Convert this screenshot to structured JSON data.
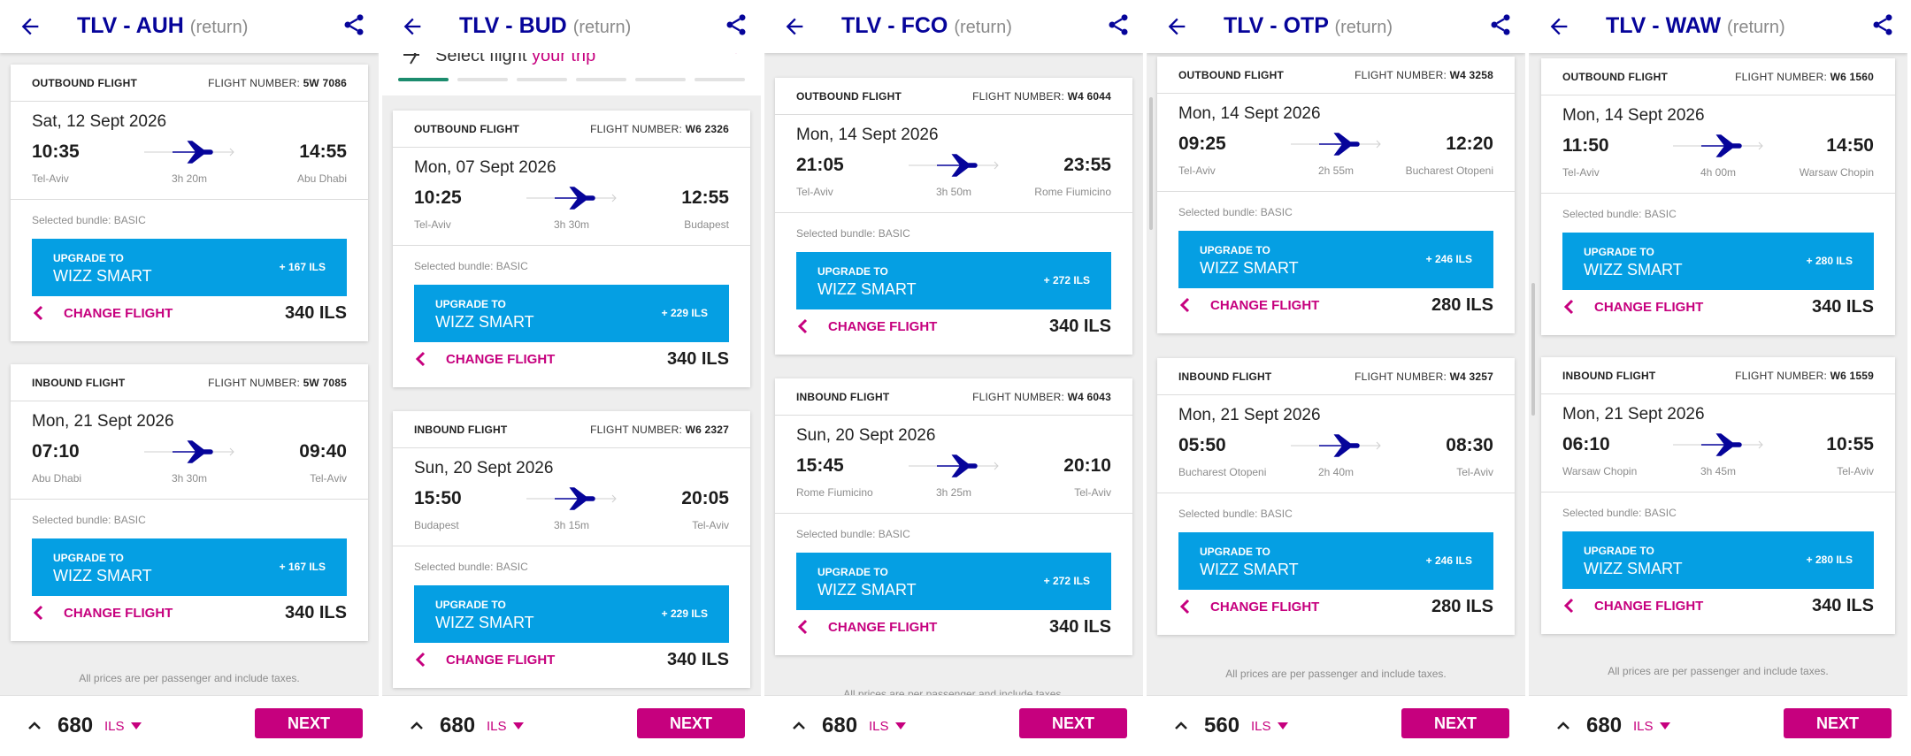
{
  "colors": {
    "brand": "#06049a",
    "accent": "#c6007e",
    "upgrade": "#059fe3"
  },
  "panels": [
    {
      "route": "TLV - AUH",
      "ret": "(return)",
      "outbound": {
        "dir": "OUTBOUND FLIGHT",
        "fn_label": "FLIGHT NUMBER:",
        "fn": "5W 7086",
        "date": "Sat, 12 Sept 2026",
        "dep": "10:35",
        "arr": "14:55",
        "from": "Tel-Aviv",
        "to": "Abu Dhabi",
        "dur": "3h 20m",
        "bundle": "Selected bundle: BASIC",
        "up1": "UPGRADE TO",
        "up2": "WIZZ SMART",
        "up_price": "+ 167 ILS",
        "change": "CHANGE FLIGHT",
        "price": "340 ILS"
      },
      "inbound": {
        "dir": "INBOUND FLIGHT",
        "fn_label": "FLIGHT NUMBER:",
        "fn": "5W 7085",
        "date": "Mon, 21 Sept 2026",
        "dep": "07:10",
        "arr": "09:40",
        "from": "Abu Dhabi",
        "to": "Tel-Aviv",
        "dur": "3h 30m",
        "bundle": "Selected bundle: BASIC",
        "up1": "UPGRADE TO",
        "up2": "WIZZ SMART",
        "up_price": "+ 167 ILS",
        "change": "CHANGE FLIGHT",
        "price": "340 ILS"
      },
      "note": "All prices are per passenger and include taxes.",
      "total": "680",
      "currency": "ILS",
      "next": "NEXT"
    },
    {
      "route": "TLV - BUD",
      "ret": "(return)",
      "steps_label": "Select flight ",
      "steps_hl": "your trip",
      "outbound": {
        "dir": "OUTBOUND FLIGHT",
        "fn_label": "FLIGHT NUMBER:",
        "fn": "W6 2326",
        "date": "Mon, 07 Sept 2026",
        "dep": "10:25",
        "arr": "12:55",
        "from": "Tel-Aviv",
        "to": "Budapest",
        "dur": "3h 30m",
        "bundle": "Selected bundle: BASIC",
        "up1": "UPGRADE TO",
        "up2": "WIZZ SMART",
        "up_price": "+ 229 ILS",
        "change": "CHANGE FLIGHT",
        "price": "340 ILS"
      },
      "inbound": {
        "dir": "INBOUND FLIGHT",
        "fn_label": "FLIGHT NUMBER:",
        "fn": "W6 2327",
        "date": "Sun, 20 Sept 2026",
        "dep": "15:50",
        "arr": "20:05",
        "from": "Budapest",
        "to": "Tel-Aviv",
        "dur": "3h 15m",
        "bundle": "Selected bundle: BASIC",
        "up1": "UPGRADE TO",
        "up2": "WIZZ SMART",
        "up_price": "+ 229 ILS",
        "change": "CHANGE FLIGHT",
        "price": "340 ILS"
      },
      "total": "680",
      "currency": "ILS",
      "next": "NEXT"
    },
    {
      "route": "TLV - FCO",
      "ret": "(return)",
      "outbound": {
        "dir": "OUTBOUND FLIGHT",
        "fn_label": "FLIGHT NUMBER:",
        "fn": "W4 6044",
        "date": "Mon, 14 Sept 2026",
        "dep": "21:05",
        "arr": "23:55",
        "from": "Tel-Aviv",
        "to": "Rome Fiumicino",
        "dur": "3h 50m",
        "bundle": "Selected bundle: BASIC",
        "up1": "UPGRADE TO",
        "up2": "WIZZ SMART",
        "up_price": "+ 272 ILS",
        "change": "CHANGE FLIGHT",
        "price": "340 ILS"
      },
      "inbound": {
        "dir": "INBOUND FLIGHT",
        "fn_label": "FLIGHT NUMBER:",
        "fn": "W4 6043",
        "date": "Sun, 20 Sept 2026",
        "dep": "15:45",
        "arr": "20:10",
        "from": "Rome Fiumicino",
        "to": "Tel-Aviv",
        "dur": "3h 25m",
        "bundle": "Selected bundle: BASIC",
        "up1": "UPGRADE TO",
        "up2": "WIZZ SMART",
        "up_price": "+ 272 ILS",
        "change": "CHANGE FLIGHT",
        "price": "340 ILS"
      },
      "note": "All prices are per passenger and include taxes.",
      "total": "680",
      "currency": "ILS",
      "next": "NEXT"
    },
    {
      "route": "TLV - OTP",
      "ret": "(return)",
      "outbound": {
        "dir": "OUTBOUND FLIGHT",
        "fn_label": "FLIGHT NUMBER:",
        "fn": "W4 3258",
        "date": "Mon, 14 Sept 2026",
        "dep": "09:25",
        "arr": "12:20",
        "from": "Tel-Aviv",
        "to": "Bucharest Otopeni",
        "dur": "2h 55m",
        "bundle": "Selected bundle: BASIC",
        "up1": "UPGRADE TO",
        "up2": "WIZZ SMART",
        "up_price": "+ 246 ILS",
        "change": "CHANGE FLIGHT",
        "price": "280 ILS"
      },
      "inbound": {
        "dir": "INBOUND FLIGHT",
        "fn_label": "FLIGHT NUMBER:",
        "fn": "W4 3257",
        "date": "Mon, 21 Sept 2026",
        "dep": "05:50",
        "arr": "08:30",
        "from": "Bucharest Otopeni",
        "to": "Tel-Aviv",
        "dur": "2h 40m",
        "bundle": "Selected bundle: BASIC",
        "up1": "UPGRADE TO",
        "up2": "WIZZ SMART",
        "up_price": "+ 246 ILS",
        "change": "CHANGE FLIGHT",
        "price": "280 ILS"
      },
      "note": "All prices are per passenger and include taxes.",
      "total": "560",
      "currency": "ILS",
      "next": "NEXT"
    },
    {
      "route": "TLV - WAW",
      "ret": "(return)",
      "outbound": {
        "dir": "OUTBOUND FLIGHT",
        "fn_label": "FLIGHT NUMBER:",
        "fn": "W6 1560",
        "date": "Mon, 14 Sept 2026",
        "dep": "11:50",
        "arr": "14:50",
        "from": "Tel-Aviv",
        "to": "Warsaw Chopin",
        "dur": "4h 00m",
        "bundle": "Selected bundle: BASIC",
        "up1": "UPGRADE TO",
        "up2": "WIZZ SMART",
        "up_price": "+ 280 ILS",
        "change": "CHANGE FLIGHT",
        "price": "340 ILS"
      },
      "inbound": {
        "dir": "INBOUND FLIGHT",
        "fn_label": "FLIGHT NUMBER:",
        "fn": "W6 1559",
        "date": "Mon, 21 Sept 2026",
        "dep": "06:10",
        "arr": "10:55",
        "from": "Warsaw Chopin",
        "to": "Tel-Aviv",
        "dur": "3h 45m",
        "bundle": "Selected bundle: BASIC",
        "up1": "UPGRADE TO",
        "up2": "WIZZ SMART",
        "up_price": "+ 280 ILS",
        "change": "CHANGE FLIGHT",
        "price": "340 ILS"
      },
      "note": "All prices are per passenger and include taxes.",
      "total": "680",
      "currency": "ILS",
      "next": "NEXT"
    }
  ]
}
